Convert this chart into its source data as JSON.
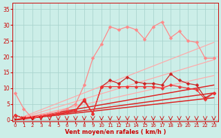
{
  "bg_color": "#cceee8",
  "grid_color": "#aad4ce",
  "xlabel": "Vent moyen/en rafales ( km/h )",
  "xlabel_color": "#cc0000",
  "tick_color": "#cc0000",
  "x_ticks": [
    0,
    1,
    2,
    3,
    4,
    5,
    6,
    7,
    8,
    9,
    10,
    11,
    12,
    13,
    14,
    15,
    16,
    17,
    18,
    19,
    20,
    21,
    22,
    23
  ],
  "y_ticks": [
    0,
    5,
    10,
    15,
    20,
    25,
    30,
    35
  ],
  "xlim": [
    -0.3,
    23.5
  ],
  "ylim": [
    -0.5,
    37
  ],
  "straight_lines": [
    {
      "color": "#ffaaaa",
      "lw": 0.9,
      "x0": 0,
      "y0": 0,
      "x1": 23,
      "y1": 19.0
    },
    {
      "color": "#ffaaaa",
      "lw": 0.9,
      "x0": 0,
      "y0": 0,
      "x1": 23,
      "y1": 24.5
    },
    {
      "color": "#ffaaaa",
      "lw": 0.9,
      "x0": 0,
      "y0": 0,
      "x1": 23,
      "y1": 14.0
    },
    {
      "color": "#dd2222",
      "lw": 1.1,
      "x0": 0,
      "y0": 0,
      "x1": 23,
      "y1": 8.5
    },
    {
      "color": "#dd2222",
      "lw": 1.1,
      "x0": 0,
      "y0": 0,
      "x1": 23,
      "y1": 11.0
    },
    {
      "color": "#dd2222",
      "lw": 1.1,
      "x0": 0,
      "y0": 0,
      "x1": 23,
      "y1": 7.0
    }
  ],
  "data_lines": [
    {
      "color": "#ff8888",
      "lw": 0.9,
      "marker": "D",
      "markersize": 2.5,
      "x": [
        0,
        1,
        2,
        3,
        4,
        5,
        6,
        7,
        8,
        9,
        10,
        11,
        12,
        13,
        14,
        15,
        16,
        17,
        18,
        19,
        20,
        21,
        22,
        23
      ],
      "y": [
        8.5,
        3.5,
        0.5,
        1.5,
        2.0,
        2.5,
        3.5,
        5.0,
        11.0,
        19.5,
        24.0,
        29.5,
        28.5,
        29.5,
        28.5,
        25.5,
        29.5,
        31.0,
        26.0,
        28.0,
        25.0,
        24.5,
        19.5,
        19.5
      ]
    },
    {
      "color": "#cc2222",
      "lw": 0.9,
      "marker": "D",
      "markersize": 2.5,
      "x": [
        0,
        1,
        2,
        3,
        4,
        5,
        6,
        7,
        8,
        9,
        10,
        11,
        12,
        13,
        14,
        15,
        16,
        17,
        18,
        19,
        20,
        21,
        22,
        23
      ],
      "y": [
        1.5,
        0.5,
        0.5,
        1.0,
        1.5,
        2.0,
        2.5,
        3.0,
        6.0,
        2.0,
        10.5,
        12.5,
        11.5,
        13.5,
        12.0,
        11.5,
        11.5,
        11.0,
        14.5,
        12.5,
        11.5,
        11.0,
        7.0,
        8.5
      ]
    },
    {
      "color": "#ee3333",
      "lw": 0.9,
      "marker": "D",
      "markersize": 2.5,
      "x": [
        0,
        1,
        2,
        3,
        4,
        5,
        6,
        7,
        8,
        9,
        10,
        11,
        12,
        13,
        14,
        15,
        16,
        17,
        18,
        19,
        20,
        21,
        22,
        23
      ],
      "y": [
        1.5,
        0.5,
        0.5,
        1.0,
        1.5,
        2.0,
        2.5,
        3.0,
        6.5,
        2.0,
        10.5,
        10.5,
        10.5,
        10.5,
        10.5,
        10.5,
        10.5,
        10.0,
        11.0,
        10.5,
        10.0,
        9.5,
        6.5,
        8.5
      ]
    }
  ]
}
